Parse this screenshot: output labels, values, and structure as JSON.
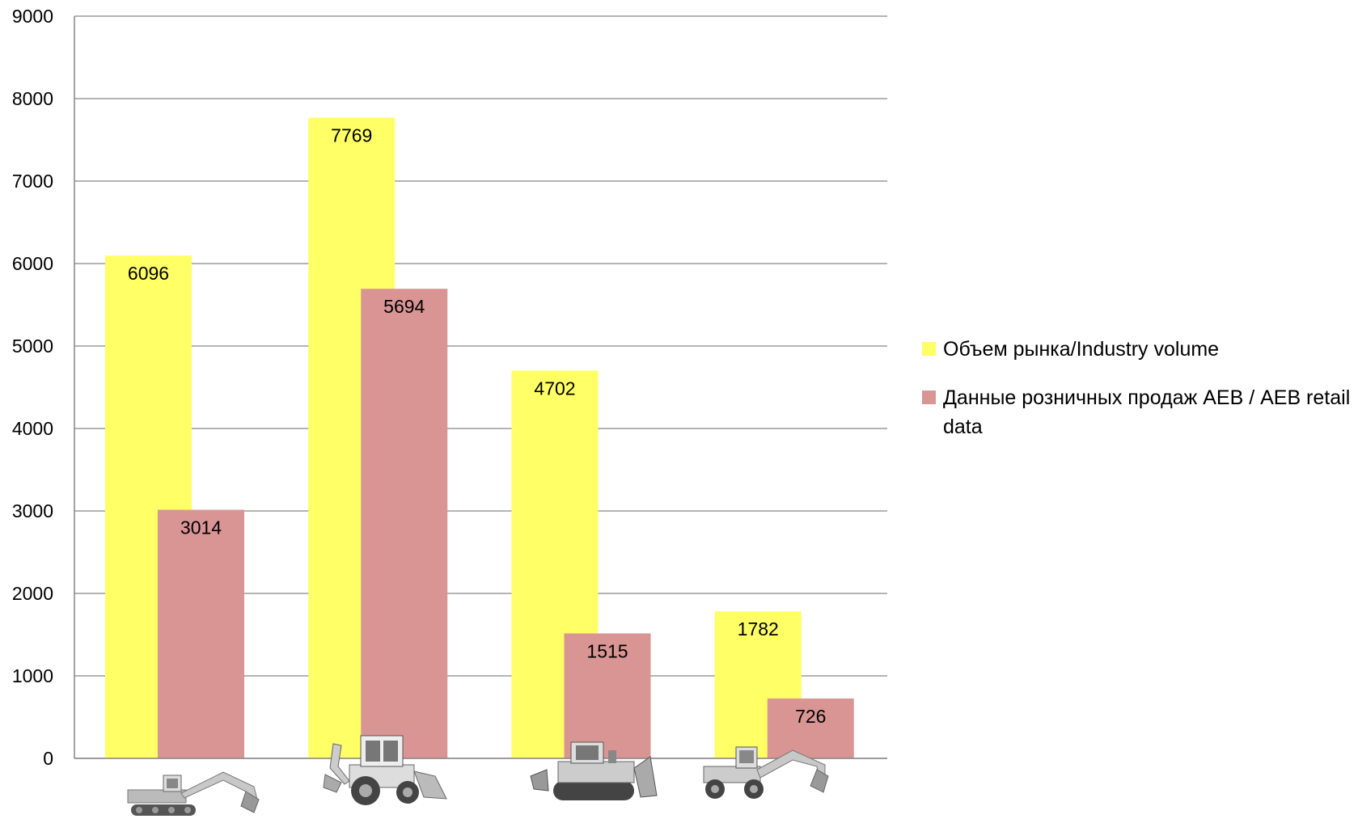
{
  "chart_data": {
    "type": "bar",
    "categories": [
      "",
      "",
      "",
      ""
    ],
    "category_icons": [
      "excavator-icon",
      "backhoe-loader-icon",
      "bulldozer-icon",
      "wheeled-excavator-icon"
    ],
    "series": [
      {
        "name": "Объем рынка/Industry volume",
        "color": "#FFFF66",
        "values": [
          6096,
          7769,
          4702,
          1782
        ]
      },
      {
        "name": "Данные розничных продаж АЕВ / AEB retail data",
        "color": "#D99594",
        "values": [
          3014,
          5694,
          1515,
          726
        ]
      }
    ],
    "ylim": [
      0,
      9000
    ],
    "yticks": [
      "0",
      "1000",
      "2000",
      "3000",
      "4000",
      "5000",
      "6000",
      "7000",
      "8000",
      "9000"
    ],
    "grid": true,
    "legend_position": "right",
    "title": "",
    "xlabel": "",
    "ylabel": ""
  }
}
